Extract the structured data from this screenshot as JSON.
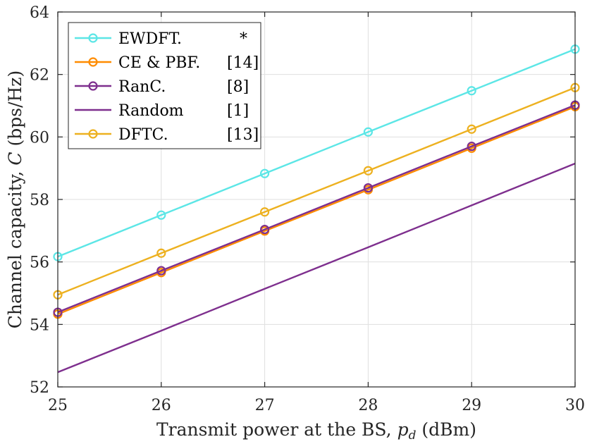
{
  "chart_data": {
    "type": "line",
    "xlabel": "Transmit power at the BS, p_d (dBm)",
    "xlabel_parts": {
      "pre": "Transmit power at the BS, ",
      "var": "p",
      "sub": "d",
      "post": " (dBm)"
    },
    "ylabel": "Channel capacity, C (bps/Hz)",
    "ylabel_parts": {
      "pre": "Channel capacity, ",
      "var": "C",
      "post": " (bps/Hz)"
    },
    "xlim": [
      25,
      30
    ],
    "ylim": [
      52,
      64
    ],
    "xticks": [
      25,
      26,
      27,
      28,
      29,
      30
    ],
    "yticks": [
      52,
      54,
      56,
      58,
      60,
      62,
      64
    ],
    "grid": true,
    "legend_position": "top-left",
    "x": [
      25,
      26,
      27,
      28,
      29,
      30
    ],
    "series": [
      {
        "name": "EWDFT.",
        "ref": "*",
        "color": "#5ce6e6",
        "marker": "circle",
        "values": [
          56.17,
          57.5,
          58.83,
          60.16,
          61.48,
          62.81
        ]
      },
      {
        "name": "CE & PBF.",
        "ref": "[14]",
        "color": "#ff8c00",
        "marker": "circle",
        "values": [
          54.33,
          55.66,
          56.99,
          58.31,
          59.64,
          60.97
        ]
      },
      {
        "name": "RanC.",
        "ref": "[8]",
        "color": "#7e2f8e",
        "marker": "circle",
        "values": [
          54.39,
          55.72,
          57.04,
          58.37,
          59.7,
          61.02
        ]
      },
      {
        "name": "Random",
        "ref": "[1]",
        "color": "#7e2f8e",
        "marker": "none",
        "values": [
          52.47,
          53.8,
          55.14,
          56.47,
          57.81,
          59.15
        ]
      },
      {
        "name": "DFTC.",
        "ref": "[13]",
        "color": "#edb120",
        "marker": "circle",
        "values": [
          54.95,
          56.28,
          57.6,
          58.92,
          60.25,
          61.58
        ]
      }
    ]
  }
}
